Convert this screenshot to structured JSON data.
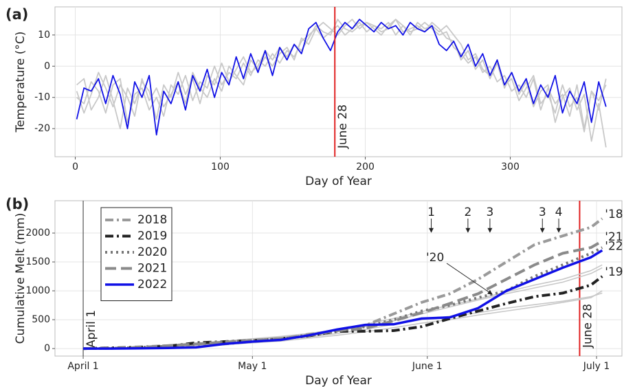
{
  "chart_data": [
    {
      "type": "line",
      "panel": "(a)",
      "xlabel": "Day of Year",
      "ylabel": "Temperature (°C)",
      "xlim": [
        -14,
        377
      ],
      "ylim": [
        -29,
        19
      ],
      "xticks": [
        0,
        100,
        200,
        300
      ],
      "yticks": [
        -20,
        -10,
        0,
        10
      ],
      "grid": true,
      "x": [
        1,
        6,
        11,
        16,
        21,
        26,
        31,
        36,
        41,
        46,
        51,
        56,
        61,
        66,
        71,
        76,
        81,
        86,
        91,
        96,
        101,
        106,
        111,
        116,
        121,
        126,
        131,
        136,
        141,
        146,
        151,
        156,
        161,
        166,
        171,
        176,
        181,
        186,
        191,
        196,
        201,
        206,
        211,
        216,
        221,
        226,
        231,
        236,
        241,
        246,
        251,
        256,
        261,
        266,
        271,
        276,
        281,
        286,
        291,
        296,
        301,
        306,
        311,
        316,
        321,
        326,
        331,
        336,
        341,
        346,
        351,
        356,
        361,
        366
      ],
      "series": [
        {
          "color": "#c8c8c8",
          "linestyle": "solid",
          "values": [
            -10,
            -12,
            -5,
            -8,
            -15,
            -6,
            -4,
            -18,
            -9,
            -7,
            -14,
            -10,
            -16,
            -6,
            -9,
            -3,
            -11,
            -5,
            -7,
            0,
            -6,
            -2,
            -4,
            1,
            -3,
            2,
            0,
            4,
            1,
            5,
            3,
            8,
            10,
            12,
            9,
            11,
            13,
            10,
            12,
            14,
            11,
            13,
            12,
            14,
            10,
            13,
            11,
            12,
            14,
            12,
            10,
            11,
            6,
            4,
            1,
            3,
            -2,
            0,
            -5,
            -3,
            -8,
            -6,
            -10,
            -4,
            -14,
            -7,
            -12,
            -9,
            -16,
            -6,
            -20,
            -8,
            -11,
            -6
          ]
        },
        {
          "color": "#c8c8c8",
          "linestyle": "solid",
          "values": [
            -6,
            -4,
            -14,
            -10,
            -3,
            -11,
            -20,
            -7,
            -12,
            -5,
            -8,
            -17,
            -6,
            -10,
            -2,
            -9,
            -4,
            -12,
            -3,
            -6,
            1,
            -5,
            -1,
            3,
            -2,
            0,
            5,
            2,
            6,
            3,
            7,
            5,
            9,
            13,
            11,
            10,
            15,
            12,
            11,
            13,
            14,
            12,
            10,
            13,
            15,
            11,
            12,
            13,
            11,
            14,
            12,
            9,
            8,
            2,
            5,
            -1,
            2,
            -4,
            1,
            -7,
            -2,
            -9,
            -5,
            -13,
            -8,
            -6,
            -18,
            -10,
            -7,
            -14,
            -9,
            -24,
            -12,
            -26
          ]
        },
        {
          "color": "#c8c8c8",
          "linestyle": "solid",
          "values": [
            -8,
            -15,
            -9,
            -2,
            -7,
            -13,
            -6,
            -10,
            -16,
            -4,
            -11,
            -7,
            -13,
            -9,
            -5,
            -12,
            -2,
            -7,
            -10,
            -4,
            -8,
            0,
            -3,
            -6,
            2,
            -1,
            3,
            0,
            4,
            6,
            2,
            9,
            7,
            12,
            14,
            12,
            10,
            13,
            15,
            12,
            14,
            13,
            11,
            12,
            15,
            13,
            10,
            14,
            12,
            13,
            11,
            13,
            10,
            7,
            2,
            4,
            -1,
            -3,
            2,
            -6,
            -4,
            -11,
            -7,
            -3,
            -12,
            -9,
            -15,
            -6,
            -13,
            -10,
            -21,
            -8,
            -14,
            -4
          ]
        },
        {
          "color": "#1010e6",
          "linestyle": "solid",
          "values": [
            -17,
            -7,
            -8,
            -4,
            -12,
            -3,
            -9,
            -20,
            -5,
            -10,
            -3,
            -22,
            -8,
            -12,
            -5,
            -14,
            -3,
            -8,
            -1,
            -10,
            -2,
            -6,
            3,
            -4,
            4,
            -2,
            5,
            -3,
            6,
            2,
            7,
            4,
            12,
            14,
            9,
            5,
            11,
            14,
            12,
            15,
            13,
            11,
            14,
            12,
            13,
            10,
            14,
            12,
            11,
            13,
            7,
            5,
            8,
            3,
            7,
            0,
            4,
            -3,
            2,
            -6,
            -2,
            -8,
            -4,
            -12,
            -6,
            -10,
            -3,
            -15,
            -8,
            -12,
            -5,
            -18,
            -5,
            -13
          ]
        }
      ],
      "vlines": [
        {
          "x": 179,
          "label": "June 28",
          "color": "#e02020"
        }
      ]
    },
    {
      "type": "line",
      "panel": "(b)",
      "xlabel": "Day of Year",
      "ylabel": "Cumulative Melt (mm)",
      "xlim": [
        86,
        186.5
      ],
      "ylim": [
        -130,
        2560
      ],
      "xticks": [
        {
          "value": 91,
          "label": "April 1"
        },
        {
          "value": 121,
          "label": "May 1"
        },
        {
          "value": 152,
          "label": "June 1"
        },
        {
          "value": 182,
          "label": "July 1"
        }
      ],
      "yticks": [
        0,
        500,
        1000,
        1500,
        2000
      ],
      "grid": true,
      "x": [
        91,
        96,
        101,
        106,
        111,
        116,
        121,
        126,
        131,
        136,
        141,
        146,
        151,
        156,
        161,
        166,
        171,
        176,
        181,
        183
      ],
      "series": [
        {
          "color": "#c8c8c8",
          "linestyle": "solid",
          "values": [
            0,
            5,
            15,
            30,
            60,
            90,
            120,
            160,
            200,
            260,
            330,
            420,
            500,
            560,
            620,
            700,
            760,
            820,
            900,
            960
          ]
        },
        {
          "color": "#c8c8c8",
          "linestyle": "solid",
          "values": [
            0,
            10,
            25,
            50,
            90,
            130,
            170,
            210,
            260,
            330,
            420,
            520,
            640,
            750,
            860,
            980,
            1100,
            1200,
            1350,
            1450
          ]
        },
        {
          "color": "#c8c8c8",
          "linestyle": "solid",
          "values": [
            0,
            3,
            10,
            20,
            40,
            70,
            100,
            130,
            180,
            230,
            290,
            360,
            440,
            500,
            580,
            650,
            720,
            800,
            880,
            1000
          ]
        },
        {
          "color": "#c8c8c8",
          "linestyle": "solid",
          "values": [
            0,
            8,
            20,
            45,
            80,
            120,
            160,
            200,
            250,
            310,
            380,
            480,
            600,
            720,
            840,
            950,
            1050,
            1150,
            1300,
            1400
          ]
        },
        {
          "name": "2018",
          "color": "#9a9a9a",
          "linestyle": "dashdot",
          "end_label": "'18",
          "values": [
            0,
            10,
            30,
            50,
            60,
            80,
            120,
            160,
            250,
            300,
            400,
            600,
            800,
            950,
            1200,
            1500,
            1800,
            1950,
            2100,
            2250
          ]
        },
        {
          "name": "2019",
          "color": "#222222",
          "linestyle": "dashdot",
          "end_label": "'19",
          "values": [
            0,
            10,
            20,
            40,
            100,
            120,
            140,
            170,
            220,
            300,
            300,
            310,
            380,
            520,
            650,
            780,
            900,
            960,
            1100,
            1250
          ]
        },
        {
          "name": "2020",
          "color": "#777777",
          "linestyle": "dotted",
          "label": "'20",
          "values": [
            0,
            5,
            20,
            40,
            80,
            120,
            140,
            170,
            220,
            300,
            380,
            500,
            650,
            750,
            880,
            1000,
            1250,
            1450,
            1650,
            1750
          ]
        },
        {
          "name": "2021",
          "color": "#8a8a8a",
          "linestyle": "dashed",
          "end_label": "'21",
          "values": [
            0,
            5,
            20,
            50,
            80,
            110,
            140,
            170,
            230,
            310,
            350,
            480,
            620,
            780,
            950,
            1200,
            1450,
            1650,
            1750,
            1860
          ]
        },
        {
          "name": "2022",
          "color": "#1010e6",
          "linestyle": "solid",
          "end_label": "'22",
          "values": [
            0,
            0,
            5,
            10,
            20,
            80,
            120,
            150,
            230,
            330,
            410,
            420,
            520,
            540,
            700,
            1000,
            1200,
            1400,
            1580,
            1700
          ]
        }
      ],
      "vlines": [
        {
          "x": 91,
          "label": "April 1",
          "color": "#333333"
        },
        {
          "x": 179,
          "label": "June 28",
          "color": "#e02020"
        }
      ],
      "arrows": [
        {
          "x": 152.7,
          "label": "1"
        },
        {
          "x": 159.2,
          "label": "2"
        },
        {
          "x": 163.1,
          "label": "3"
        },
        {
          "x": 172.4,
          "label": "3"
        },
        {
          "x": 175.3,
          "label": "4"
        }
      ],
      "legend": "top-left"
    }
  ]
}
